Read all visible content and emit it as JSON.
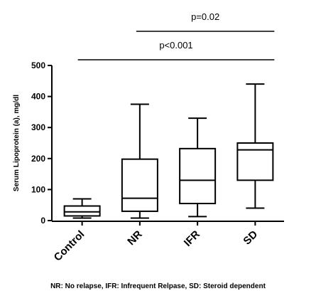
{
  "chart_data": {
    "type": "box",
    "ylabel": "Serum Lipoprotein (a), mg/dl",
    "ylim": [
      0,
      500
    ],
    "yticks": [
      0,
      100,
      200,
      300,
      400,
      500
    ],
    "categories": [
      "Control",
      "NR",
      "IFR",
      "SD"
    ],
    "boxes": [
      {
        "category": "Control",
        "min": 8,
        "q1": 15,
        "median": 28,
        "q3": 47,
        "max": 70
      },
      {
        "category": "NR",
        "min": 8,
        "q1": 30,
        "median": 72,
        "q3": 198,
        "max": 375
      },
      {
        "category": "IFR",
        "min": 13,
        "q1": 55,
        "median": 130,
        "q3": 232,
        "max": 330
      },
      {
        "category": "SD",
        "min": 40,
        "q1": 130,
        "median": 228,
        "q3": 250,
        "max": 440
      }
    ],
    "annotations": [
      {
        "text": "p=0.02",
        "from": "NR",
        "to": "SD"
      },
      {
        "text": "p<0.001",
        "from": "Control",
        "to": "SD"
      }
    ],
    "grid": false,
    "legend": "none"
  },
  "caption": "NR: No relapse, IFR: Infrequent Relpase, SD: Steroid dependent"
}
